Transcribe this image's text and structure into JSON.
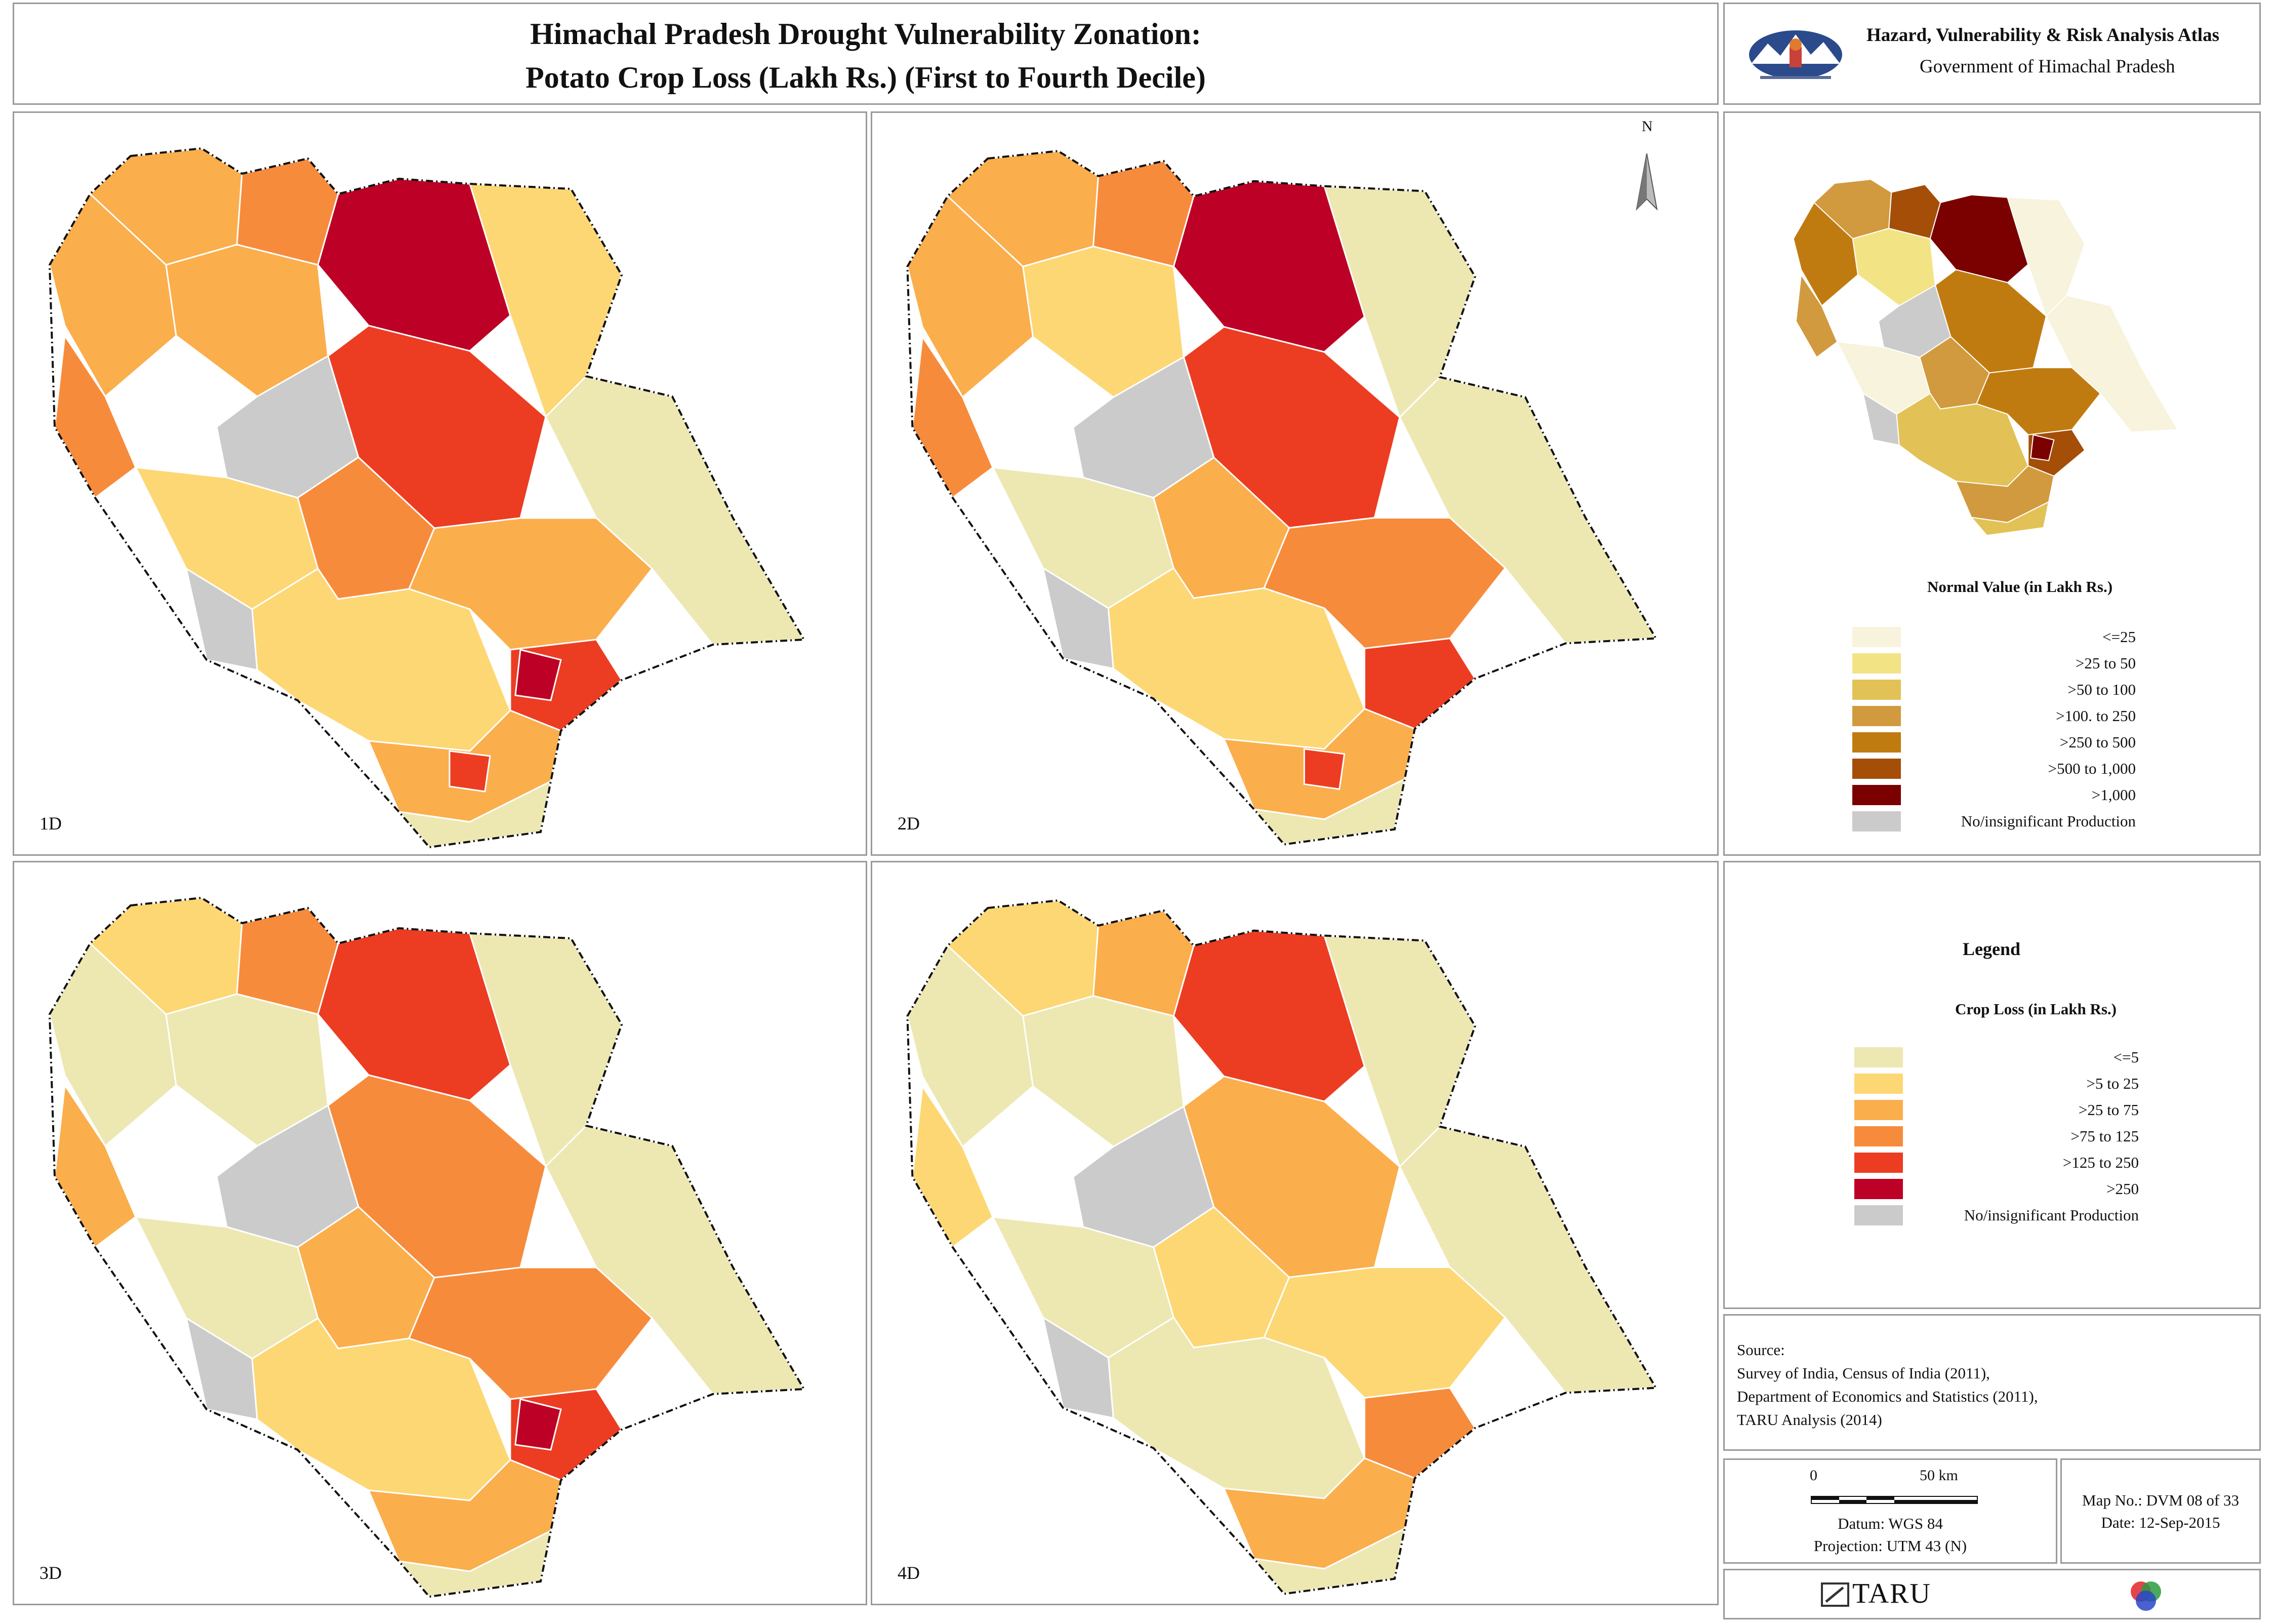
{
  "title": {
    "line1": "Himachal Pradesh Drought Vulnerability Zonation:",
    "line2": "Potato Crop Loss (Lakh Rs.) (First to Fourth Decile)"
  },
  "atlas": {
    "title": "Hazard, Vulnerability & Risk Analysis Atlas",
    "subtitle": "Government of Himachal Pradesh",
    "emblem_icon": "himachal-emblem-icon"
  },
  "maps": [
    {
      "label": "1D"
    },
    {
      "label": "2D"
    },
    {
      "label": "3D"
    },
    {
      "label": "4D"
    }
  ],
  "north_arrow": {
    "label": "N"
  },
  "normal_value_legend": {
    "heading": "Normal Value (in Lakh Rs.)",
    "items": [
      {
        "label": "<=25",
        "color": "#f7f3dc"
      },
      {
        "label": ">25 to 50",
        "color": "#f2e385"
      },
      {
        "label": ">50 to 100",
        "color": "#e2c256"
      },
      {
        "label": ">100. to 250",
        "color": "#d19a3e"
      },
      {
        "label": ">250 to 500",
        "color": "#c07b10"
      },
      {
        "label": ">500 to 1,000",
        "color": "#a44e08"
      },
      {
        "label": ">1,000",
        "color": "#7b0000"
      },
      {
        "label": "No/insignificant Production",
        "color": "#cbcbcb"
      }
    ]
  },
  "crop_loss_legend": {
    "title": "Legend",
    "heading": "Crop Loss (in Lakh Rs.)",
    "items": [
      {
        "label": "<=5",
        "color": "#ede7b2"
      },
      {
        "label": ">5 to 25",
        "color": "#fdd774"
      },
      {
        "label": ">25 to 75",
        "color": "#fbae4c"
      },
      {
        "label": ">75 to 125",
        "color": "#f78b3c"
      },
      {
        "label": ">125 to 250",
        "color": "#ec3d22"
      },
      {
        "label": ">250",
        "color": "#bd0025"
      },
      {
        "label": "No/insignificant Production",
        "color": "#cbcbcb"
      }
    ]
  },
  "source": {
    "heading": "Source:",
    "lines": [
      "Survey of India, Census of India (2011),",
      "Department of Economics and Statistics (2011),",
      "TARU Analysis (2014)"
    ]
  },
  "scale": {
    "zero": "0",
    "end": "50 km",
    "datum": "Datum: WGS 84",
    "projection": "Projection: UTM 43 (N)"
  },
  "map_info": {
    "map_no": "Map No.: DVM 08 of 33",
    "date": "Date: 12-Sep-2015"
  },
  "footer": {
    "taru": "TARU",
    "taru_icon": "taru-logo-icon",
    "rgb_icon": "rgb-circles-icon"
  }
}
